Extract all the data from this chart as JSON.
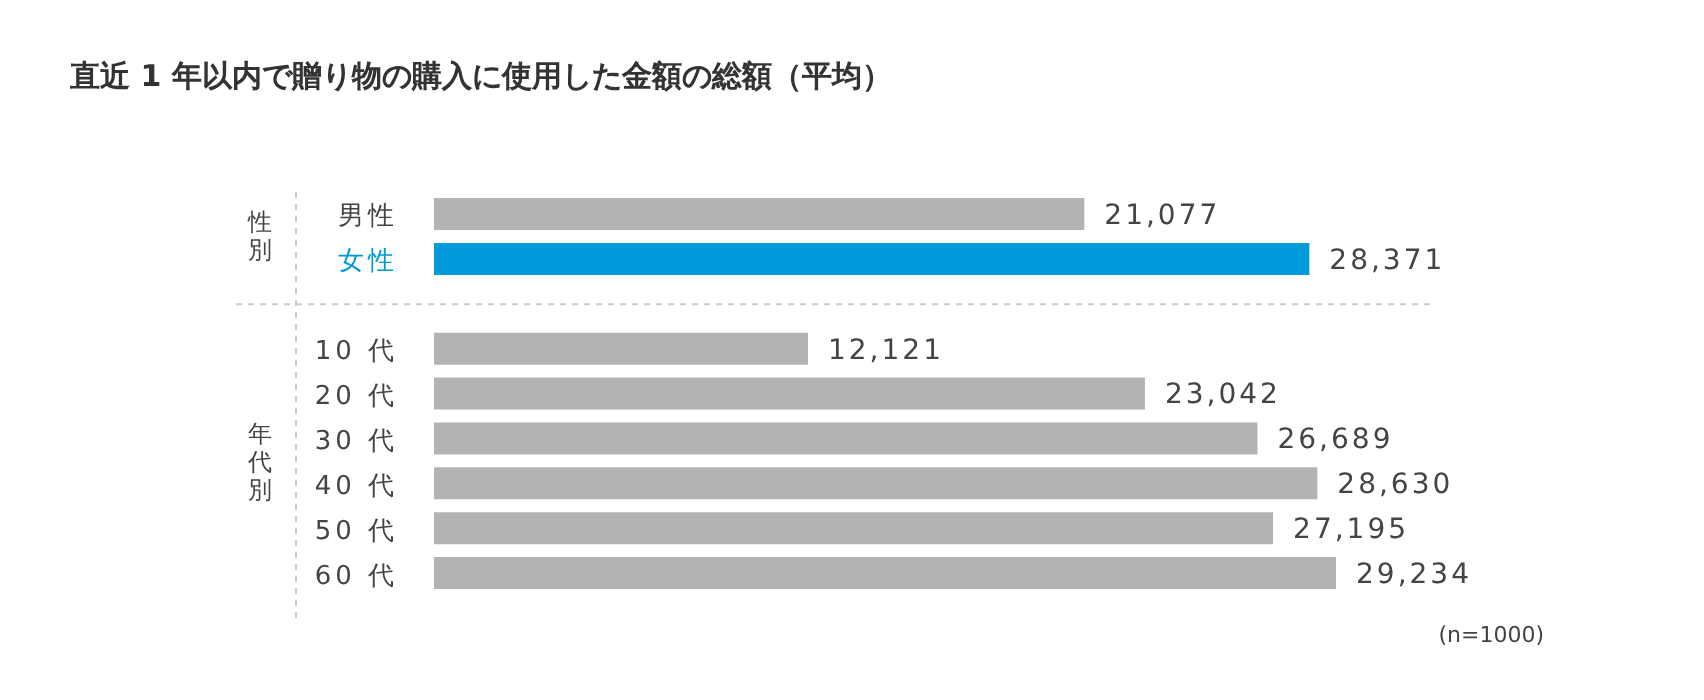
{
  "chart_data": {
    "type": "bar",
    "orientation": "horizontal",
    "title": "直近 1 年以内で贈り物の購入に使用した金額の総額（平均）",
    "categories": [
      "男性",
      "女性",
      null,
      "10 代",
      "20 代",
      "30 代",
      "40 代",
      "50 代",
      "60 代"
    ],
    "values": [
      21077,
      28371,
      null,
      12121,
      23042,
      26689,
      28630,
      27195,
      29234
    ],
    "colors": [
      "#b3b3b3",
      "#0099d9",
      "#b3b3b3",
      "#b3b3b3",
      "#b3b3b3",
      "#b3b3b3",
      "#b3b3b3",
      "#b3b3b3",
      "#b3b3b3"
    ],
    "value_labels": [
      "21,077",
      "28,371",
      null,
      "12,121",
      "23,042",
      "26,689",
      "28,630",
      "27,195",
      "29,234"
    ],
    "annotations": [
      "性別",
      "年代別",
      "(n=1000)"
    ]
  }
}
